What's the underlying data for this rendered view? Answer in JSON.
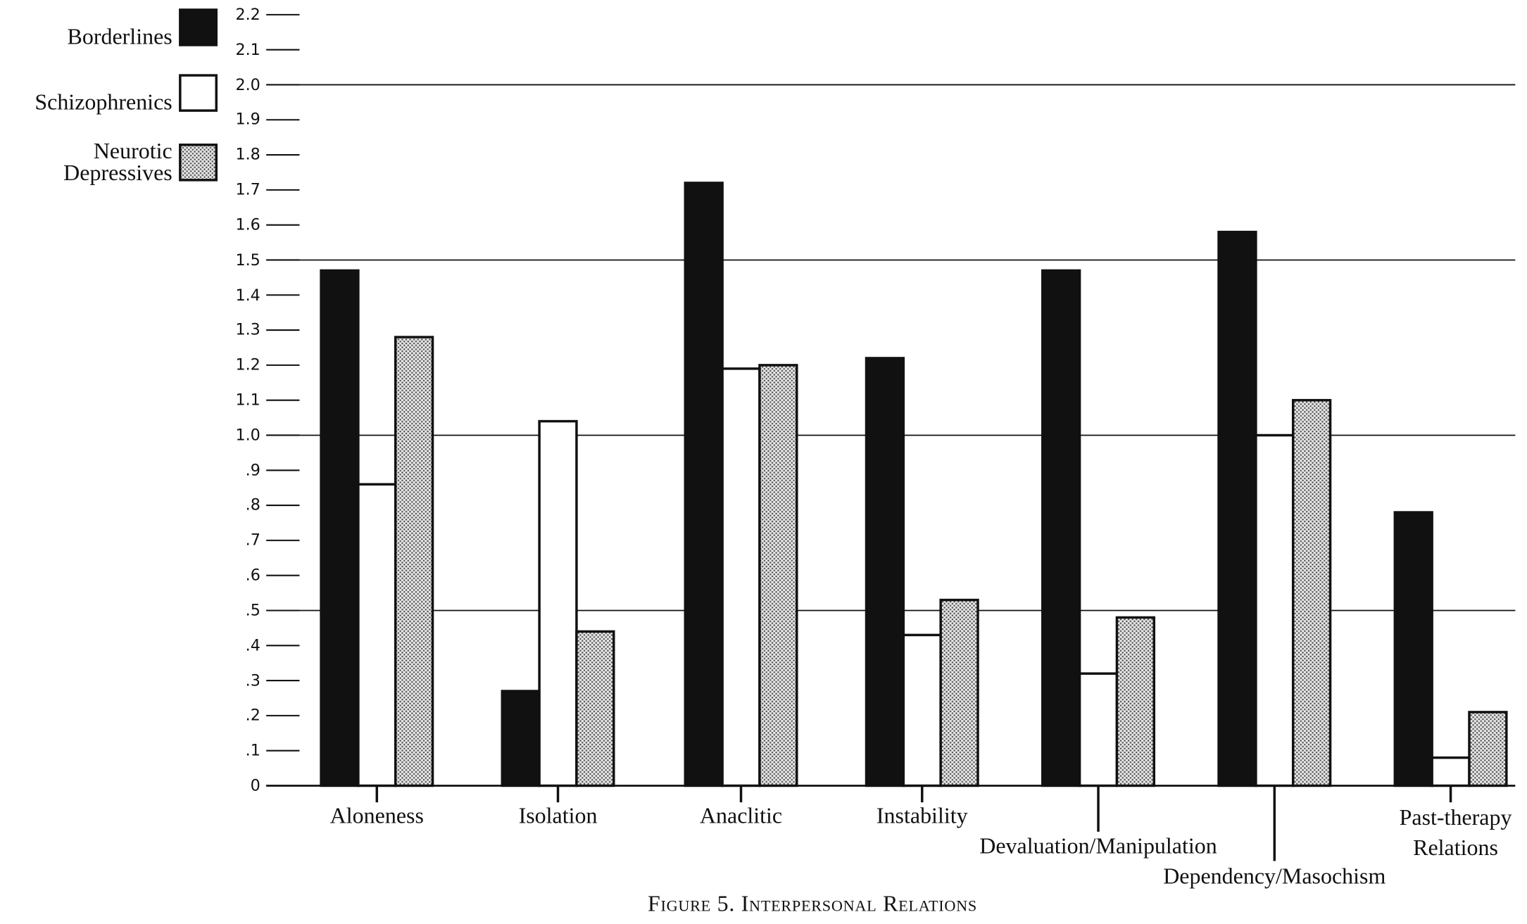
{
  "chart_data": {
    "type": "bar",
    "title": "Figure 5. Interpersonal Relations",
    "categories": [
      "Aloneness",
      "Isolation",
      "Anaclitic",
      "Instability",
      "Devaluation/Manipulation",
      "Dependency/Masochism",
      "Past-therapy Relations"
    ],
    "series": [
      {
        "name": "Borderlines",
        "color": "#111111",
        "values": [
          1.47,
          0.27,
          1.72,
          1.22,
          1.47,
          1.58,
          0.78
        ]
      },
      {
        "name": "Schizophrenics",
        "color": "#ffffff",
        "values": [
          0.86,
          1.04,
          1.19,
          0.43,
          0.32,
          1.0,
          0.08
        ]
      },
      {
        "name": "Neurotic Depressives",
        "color": "stipple",
        "values": [
          1.28,
          0.44,
          1.2,
          0.53,
          0.48,
          1.1,
          0.21
        ]
      }
    ],
    "ylim": [
      0,
      2.2
    ],
    "yticks": [
      0,
      {
        "value": 0.1,
        "label": ".1"
      },
      {
        "value": 0.2,
        "label": ".2"
      },
      {
        "value": 0.3,
        "label": ".3"
      },
      {
        "value": 0.4,
        "label": ".4"
      },
      {
        "value": 0.5,
        "label": ".5"
      },
      {
        "value": 0.6,
        "label": ".6"
      },
      {
        "value": 0.7,
        "label": ".7"
      },
      {
        "value": 0.8,
        "label": ".8"
      },
      {
        "value": 0.9,
        "label": ".9"
      },
      {
        "value": 1.0,
        "label": "1.0"
      },
      1.1,
      1.2,
      1.3,
      1.4,
      1.5,
      1.6,
      1.7,
      1.8,
      1.9,
      {
        "value": 2.0,
        "label": "2.0"
      },
      2.1,
      2.2
    ],
    "gridlines": [
      0.5,
      1.0,
      1.5,
      2.0
    ],
    "legend": "top-left"
  }
}
